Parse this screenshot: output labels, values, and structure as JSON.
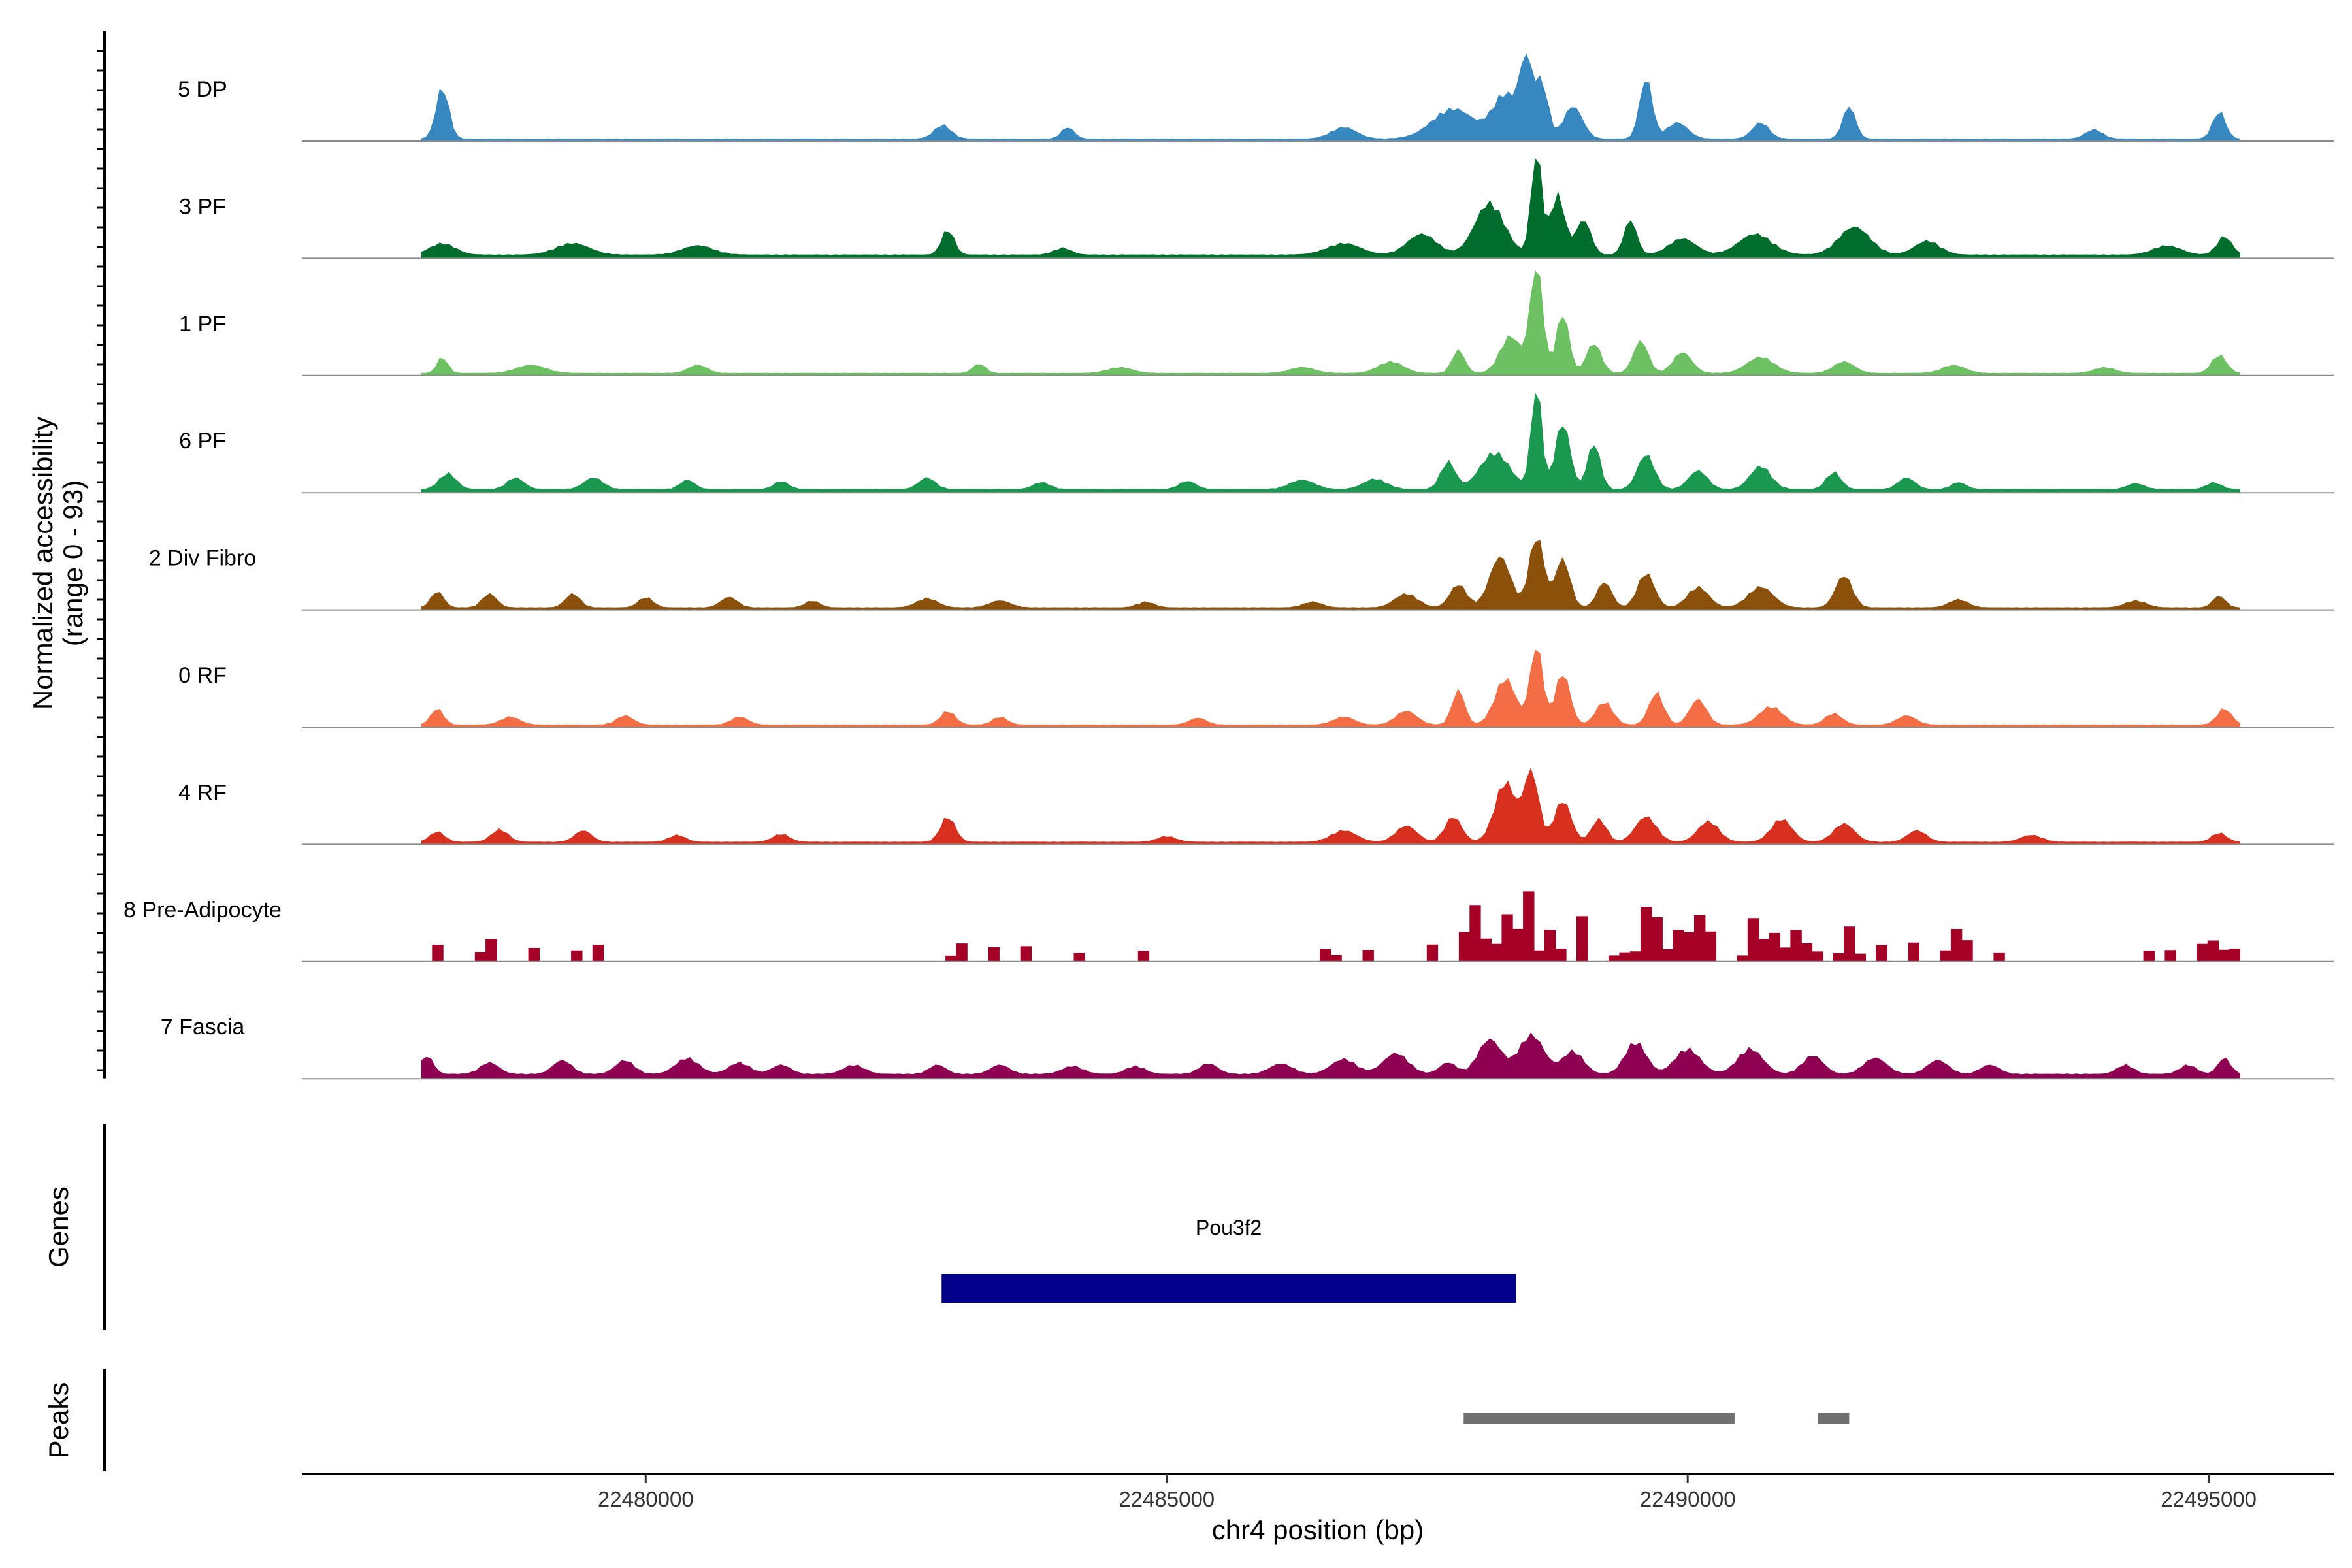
{
  "chart_data": {
    "type": "area",
    "title": "",
    "ylabel_line1": "Normalized accessibility",
    "ylabel_line2": "(range 0 - 93)",
    "ylim": [
      0,
      93
    ],
    "xlabel": "chr4 position (bp)",
    "xlim": [
      22476700,
      22496200
    ],
    "x_ticks": [
      22480000,
      22485000,
      22490000,
      22495000
    ],
    "x_tick_labels": [
      "22480000",
      "22485000",
      "22490000",
      "22495000"
    ],
    "region": [
      22477850,
      22495300
    ],
    "tracks": [
      {
        "name": "5 DP",
        "color": "#3787C0",
        "bins": 400,
        "base": 2,
        "peaks": [
          [
            22478050,
            45,
            60
          ],
          [
            22482850,
            12,
            80
          ],
          [
            22484050,
            10,
            60
          ],
          [
            22486700,
            10,
            120
          ],
          [
            22487750,
            26,
            200
          ],
          [
            22488250,
            38,
            120
          ],
          [
            22488450,
            62,
            60
          ],
          [
            22488600,
            48,
            60
          ],
          [
            22488900,
            28,
            90
          ],
          [
            22489600,
            52,
            60
          ],
          [
            22489900,
            14,
            100
          ],
          [
            22490700,
            14,
            80
          ],
          [
            22491550,
            28,
            60
          ],
          [
            22493900,
            8,
            80
          ],
          [
            22495100,
            24,
            60
          ]
        ]
      },
      {
        "name": "3 PF",
        "color": "#006D2C",
        "bins": 400,
        "base": 3,
        "peaks": [
          [
            22478050,
            10,
            120
          ],
          [
            22479300,
            10,
            160
          ],
          [
            22480500,
            8,
            150
          ],
          [
            22482900,
            22,
            60
          ],
          [
            22484000,
            6,
            80
          ],
          [
            22486700,
            10,
            160
          ],
          [
            22487450,
            18,
            140
          ],
          [
            22488100,
            45,
            140
          ],
          [
            22488550,
            88,
            50
          ],
          [
            22488750,
            52,
            70
          ],
          [
            22489000,
            30,
            70
          ],
          [
            22489450,
            30,
            60
          ],
          [
            22489950,
            14,
            130
          ],
          [
            22490650,
            18,
            160
          ],
          [
            22491600,
            24,
            150
          ],
          [
            22492300,
            12,
            120
          ],
          [
            22494600,
            8,
            130
          ],
          [
            22495150,
            16,
            70
          ]
        ]
      },
      {
        "name": "1 PF",
        "color": "#6DC162",
        "bins": 400,
        "base": 2,
        "peaks": [
          [
            22478050,
            14,
            50
          ],
          [
            22478900,
            7,
            140
          ],
          [
            22480500,
            7,
            90
          ],
          [
            22483200,
            8,
            60
          ],
          [
            22484550,
            5,
            120
          ],
          [
            22486300,
            5,
            120
          ],
          [
            22487150,
            10,
            120
          ],
          [
            22487800,
            20,
            60
          ],
          [
            22488300,
            32,
            100
          ],
          [
            22488550,
            92,
            60
          ],
          [
            22488800,
            52,
            60
          ],
          [
            22489100,
            26,
            70
          ],
          [
            22489550,
            28,
            70
          ],
          [
            22489950,
            18,
            90
          ],
          [
            22490700,
            14,
            130
          ],
          [
            22491500,
            10,
            100
          ],
          [
            22492550,
            7,
            110
          ],
          [
            22494000,
            5,
            100
          ],
          [
            22495100,
            16,
            70
          ]
        ]
      },
      {
        "name": "6 PF",
        "color": "#1B9850",
        "bins": 400,
        "base": 3,
        "peaks": [
          [
            22478100,
            14,
            80
          ],
          [
            22478750,
            10,
            80
          ],
          [
            22479500,
            10,
            90
          ],
          [
            22480400,
            8,
            70
          ],
          [
            22481300,
            7,
            70
          ],
          [
            22482700,
            10,
            80
          ],
          [
            22483800,
            6,
            80
          ],
          [
            22485200,
            7,
            80
          ],
          [
            22486300,
            8,
            120
          ],
          [
            22487000,
            9,
            110
          ],
          [
            22487700,
            24,
            70
          ],
          [
            22488150,
            32,
            140
          ],
          [
            22488550,
            88,
            50
          ],
          [
            22488800,
            58,
            70
          ],
          [
            22489100,
            40,
            60
          ],
          [
            22489600,
            30,
            80
          ],
          [
            22490100,
            16,
            90
          ],
          [
            22490700,
            20,
            100
          ],
          [
            22491400,
            15,
            70
          ],
          [
            22492100,
            10,
            80
          ],
          [
            22492600,
            6,
            70
          ],
          [
            22494300,
            5,
            80
          ],
          [
            22495050,
            6,
            70
          ]
        ]
      },
      {
        "name": "2 Div Fibro",
        "color": "#8B510A",
        "bins": 400,
        "base": 2,
        "peaks": [
          [
            22478000,
            14,
            60
          ],
          [
            22478500,
            12,
            70
          ],
          [
            22479300,
            12,
            70
          ],
          [
            22480000,
            9,
            70
          ],
          [
            22480800,
            9,
            80
          ],
          [
            22481600,
            6,
            70
          ],
          [
            22482700,
            8,
            100
          ],
          [
            22483400,
            6,
            100
          ],
          [
            22484800,
            5,
            80
          ],
          [
            22486400,
            5,
            90
          ],
          [
            22487300,
            12,
            110
          ],
          [
            22487800,
            20,
            80
          ],
          [
            22488200,
            44,
            100
          ],
          [
            22488550,
            62,
            70
          ],
          [
            22488800,
            42,
            70
          ],
          [
            22489200,
            22,
            70
          ],
          [
            22489600,
            30,
            80
          ],
          [
            22490100,
            18,
            100
          ],
          [
            22490700,
            18,
            120
          ],
          [
            22491500,
            28,
            80
          ],
          [
            22492600,
            7,
            90
          ],
          [
            22494300,
            6,
            100
          ],
          [
            22495100,
            10,
            60
          ]
        ]
      },
      {
        "name": "0 RF",
        "color": "#F36E44",
        "bins": 400,
        "base": 2,
        "peaks": [
          [
            22478000,
            14,
            60
          ],
          [
            22478700,
            7,
            90
          ],
          [
            22479800,
            8,
            80
          ],
          [
            22480900,
            7,
            80
          ],
          [
            22482900,
            12,
            70
          ],
          [
            22483400,
            7,
            70
          ],
          [
            22485300,
            6,
            80
          ],
          [
            22486700,
            7,
            100
          ],
          [
            22487300,
            12,
            100
          ],
          [
            22487800,
            30,
            60
          ],
          [
            22488250,
            40,
            100
          ],
          [
            22488550,
            68,
            60
          ],
          [
            22488800,
            45,
            70
          ],
          [
            22489200,
            20,
            80
          ],
          [
            22489700,
            28,
            70
          ],
          [
            22490100,
            22,
            80
          ],
          [
            22490800,
            16,
            110
          ],
          [
            22491400,
            10,
            80
          ],
          [
            22492100,
            8,
            90
          ],
          [
            22495150,
            14,
            70
          ]
        ]
      },
      {
        "name": "4 RF",
        "color": "#D7301F",
        "bins": 400,
        "base": 2,
        "peaks": [
          [
            22478000,
            9,
            70
          ],
          [
            22478600,
            11,
            80
          ],
          [
            22479400,
            10,
            80
          ],
          [
            22480300,
            6,
            80
          ],
          [
            22481300,
            7,
            80
          ],
          [
            22482900,
            22,
            70
          ],
          [
            22485000,
            5,
            90
          ],
          [
            22486700,
            10,
            120
          ],
          [
            22487300,
            14,
            100
          ],
          [
            22487750,
            22,
            80
          ],
          [
            22488250,
            52,
            100
          ],
          [
            22488500,
            60,
            70
          ],
          [
            22488800,
            36,
            80
          ],
          [
            22489150,
            20,
            70
          ],
          [
            22489600,
            22,
            100
          ],
          [
            22490200,
            18,
            100
          ],
          [
            22490900,
            20,
            100
          ],
          [
            22491500,
            16,
            100
          ],
          [
            22492200,
            10,
            90
          ],
          [
            22493300,
            6,
            100
          ],
          [
            22495100,
            8,
            70
          ]
        ]
      },
      {
        "name": "8 Pre-Adipocyte",
        "color": "#A50026",
        "bins": 170,
        "base": 0,
        "peaks": [
          [
            22477950,
            14,
            40
          ],
          [
            22478450,
            22,
            60
          ],
          [
            22478900,
            14,
            40
          ],
          [
            22479250,
            14,
            40
          ],
          [
            22479500,
            14,
            40
          ],
          [
            22482950,
            22,
            40
          ],
          [
            22483300,
            12,
            40
          ],
          [
            22483600,
            14,
            40
          ],
          [
            22484150,
            12,
            40
          ],
          [
            22484750,
            12,
            40
          ],
          [
            22486500,
            12,
            60
          ],
          [
            22486900,
            10,
            50
          ],
          [
            22487500,
            14,
            40
          ],
          [
            22487900,
            50,
            80
          ],
          [
            22488200,
            40,
            60
          ],
          [
            22488400,
            62,
            60
          ],
          [
            22488650,
            28,
            60
          ],
          [
            22488950,
            42,
            40
          ],
          [
            22489300,
            14,
            40
          ],
          [
            22489600,
            54,
            80
          ],
          [
            22489900,
            36,
            60
          ],
          [
            22490100,
            48,
            60
          ],
          [
            22490600,
            42,
            60
          ],
          [
            22490800,
            28,
            50
          ],
          [
            22491000,
            30,
            60
          ],
          [
            22491150,
            16,
            40
          ],
          [
            22491500,
            30,
            60
          ],
          [
            22491800,
            14,
            40
          ],
          [
            22492100,
            20,
            40
          ],
          [
            22492550,
            30,
            80
          ],
          [
            22492900,
            12,
            40
          ],
          [
            22494350,
            12,
            40
          ],
          [
            22494600,
            12,
            40
          ],
          [
            22494950,
            24,
            60
          ],
          [
            22495150,
            22,
            40
          ]
        ]
      },
      {
        "name": "7 Fascia",
        "color": "#8E0152",
        "bins": 400,
        "base": 4,
        "peaks": [
          [
            22477900,
            16,
            60
          ],
          [
            22478500,
            10,
            90
          ],
          [
            22479200,
            12,
            90
          ],
          [
            22479800,
            12,
            90
          ],
          [
            22480400,
            14,
            110
          ],
          [
            22480900,
            10,
            100
          ],
          [
            22481300,
            8,
            90
          ],
          [
            22482000,
            8,
            100
          ],
          [
            22482800,
            8,
            80
          ],
          [
            22483400,
            8,
            90
          ],
          [
            22484100,
            7,
            100
          ],
          [
            22484700,
            7,
            90
          ],
          [
            22485400,
            9,
            90
          ],
          [
            22486100,
            9,
            110
          ],
          [
            22486700,
            13,
            120
          ],
          [
            22487200,
            18,
            120
          ],
          [
            22487700,
            10,
            80
          ],
          [
            22488100,
            30,
            110
          ],
          [
            22488500,
            34,
            120
          ],
          [
            22488900,
            20,
            100
          ],
          [
            22489500,
            28,
            100
          ],
          [
            22490000,
            22,
            120
          ],
          [
            22490600,
            22,
            120
          ],
          [
            22491200,
            16,
            100
          ],
          [
            22491800,
            14,
            110
          ],
          [
            22492400,
            12,
            100
          ],
          [
            22492900,
            8,
            90
          ],
          [
            22494200,
            8,
            80
          ],
          [
            22494800,
            8,
            80
          ],
          [
            22495150,
            14,
            60
          ]
        ]
      }
    ],
    "genes_label": "Genes",
    "genes": [
      {
        "name": "Pou3f2",
        "start": 22482840,
        "end": 22488350,
        "color": "#00008B"
      }
    ],
    "peaks_label": "Peaks",
    "peak_regions": [
      {
        "start": 22487850,
        "end": 22490450
      },
      {
        "start": 22491250,
        "end": 22491550
      }
    ],
    "peak_color": "#707070"
  }
}
